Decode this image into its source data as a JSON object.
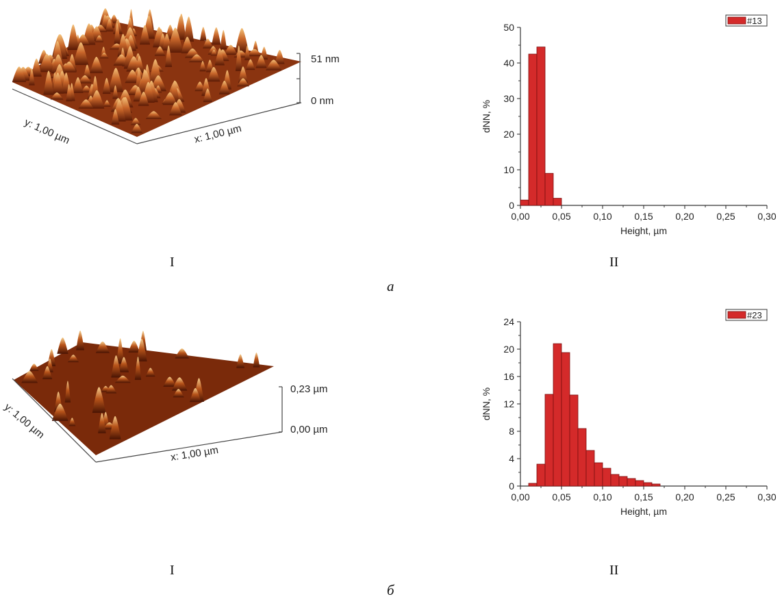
{
  "panel_a": {
    "letter": "а",
    "afm": {
      "z_top_label": "51 nm",
      "z_bottom_label": "0 nm",
      "y_axis_label": "y: 1,00 µm",
      "x_axis_label": "x: 1,00 µm",
      "caption": "I"
    },
    "histogram_caption": "II"
  },
  "panel_b": {
    "letter": "б",
    "afm": {
      "z_top_label": "0,23 µm",
      "z_bottom_label": "0,00 µm",
      "y_axis_label": "y: 1,00 µm",
      "x_axis_label": "x: 1,00 µm",
      "caption": "I"
    },
    "histogram_caption": "II"
  },
  "colors": {
    "bar_fill": "#d42a2a",
    "bar_stroke": "#7a1010",
    "afm_dark": "#5a1a05",
    "afm_mid": "#b8541a",
    "afm_light": "#f4c27a"
  },
  "chart_data": [
    {
      "type": "bar",
      "xlabel": "Height, µm",
      "ylabel": "dNN, %",
      "legend": "#13",
      "legend_position": "top-right",
      "xlim": [
        0,
        0.3
      ],
      "ylim": [
        0,
        50
      ],
      "x_ticks": [
        "0,00",
        "0,05",
        "0,10",
        "0,15",
        "0,20",
        "0,25",
        "0,30"
      ],
      "y_ticks": [
        "0",
        "10",
        "20",
        "30",
        "40",
        "50"
      ],
      "bin_width": 0.01,
      "bins": [
        {
          "x": 0.0,
          "y": 1.5
        },
        {
          "x": 0.01,
          "y": 42.5
        },
        {
          "x": 0.02,
          "y": 44.5
        },
        {
          "x": 0.03,
          "y": 9.0
        },
        {
          "x": 0.04,
          "y": 2.0
        }
      ]
    },
    {
      "type": "bar",
      "xlabel": "Height, µm",
      "ylabel": "dNN, %",
      "legend": "#23",
      "legend_position": "top-right",
      "xlim": [
        0,
        0.3
      ],
      "ylim": [
        0,
        24
      ],
      "x_ticks": [
        "0,00",
        "0,05",
        "0,10",
        "0,15",
        "0,20",
        "0,25",
        "0,30"
      ],
      "y_ticks": [
        "0",
        "4",
        "8",
        "12",
        "16",
        "20",
        "24"
      ],
      "bin_width": 0.01,
      "bins": [
        {
          "x": 0.01,
          "y": 0.4
        },
        {
          "x": 0.02,
          "y": 3.2
        },
        {
          "x": 0.03,
          "y": 13.4
        },
        {
          "x": 0.04,
          "y": 20.8
        },
        {
          "x": 0.05,
          "y": 19.5
        },
        {
          "x": 0.06,
          "y": 13.3
        },
        {
          "x": 0.07,
          "y": 8.4
        },
        {
          "x": 0.08,
          "y": 5.2
        },
        {
          "x": 0.09,
          "y": 3.4
        },
        {
          "x": 0.1,
          "y": 2.6
        },
        {
          "x": 0.11,
          "y": 1.7
        },
        {
          "x": 0.12,
          "y": 1.4
        },
        {
          "x": 0.13,
          "y": 1.1
        },
        {
          "x": 0.14,
          "y": 0.8
        },
        {
          "x": 0.15,
          "y": 0.5
        },
        {
          "x": 0.16,
          "y": 0.3
        }
      ]
    }
  ]
}
